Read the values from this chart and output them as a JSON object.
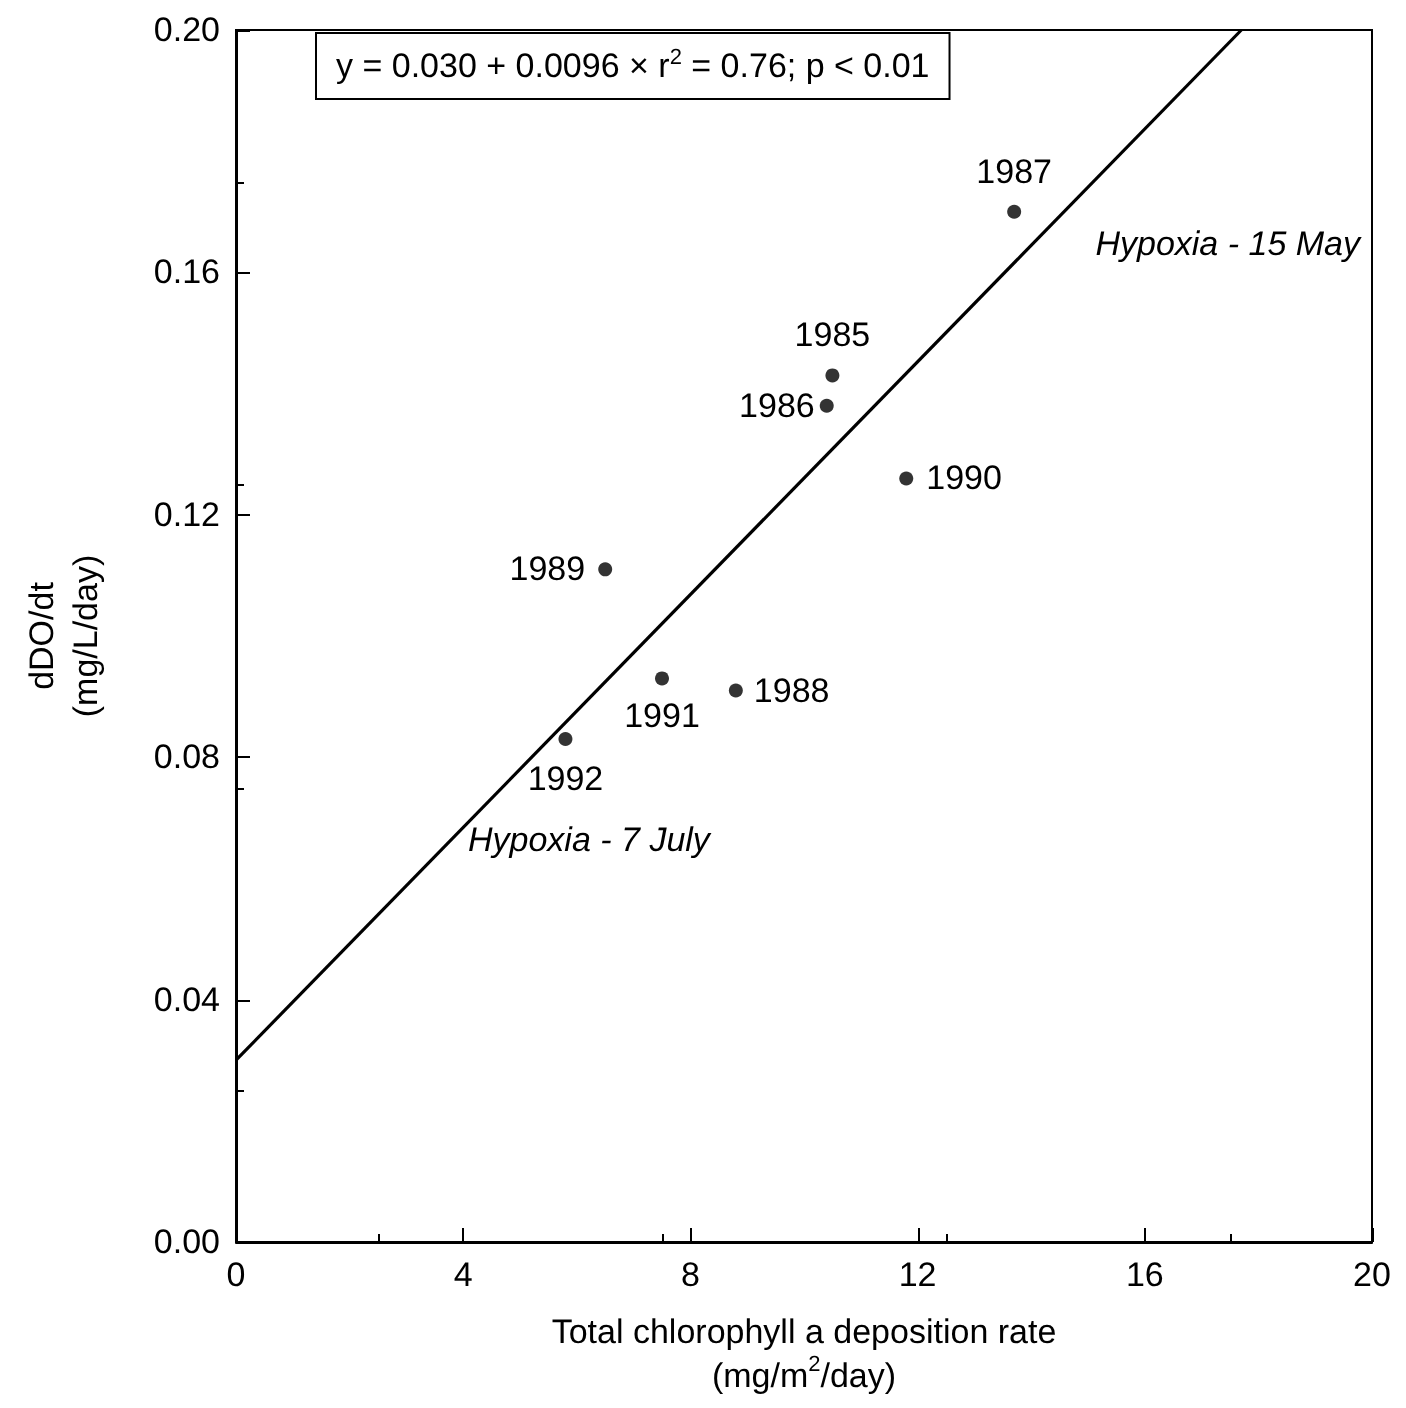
{
  "chart_data": {
    "type": "scatter",
    "xlabel": "Total chlorophyll a deposition rate\n(mg/m$^{2}$/day)",
    "ylabel": "dDO/dt\n(mg/L/day)",
    "xlim": [
      0,
      20
    ],
    "xticks": [
      0,
      4,
      8,
      12,
      16,
      20
    ],
    "ylim": [
      0,
      0.2
    ],
    "yticks": [
      {
        "value": 0,
        "label": "0.00"
      },
      0.04,
      0.08,
      0.12,
      0.16,
      {
        "value": 0.2,
        "label": "0.20"
      }
    ],
    "grid": false,
    "marker": "circle",
    "series": [
      {
        "color": "#000000",
        "x": [
          10.5,
          10.4,
          13.7,
          8.8,
          6.5,
          11.8,
          7.5,
          5.8
        ],
        "values": [
          0.143,
          0.138,
          0.17,
          0.091,
          0.111,
          0.126,
          0.093,
          0.083
        ]
      },
      {
        "type": "line",
        "color": "#000000",
        "marker": "none",
        "line_style": "solid",
        "x": [
          0,
          17.7
        ],
        "values": [
          0.03,
          0.2
        ]
      }
    ],
    "annotations": [
      "y = 0.030 + 0.0096 × r$^{2}$ = 0.76; p < 0.01",
      "Hypoxia - 15 May",
      "Hypoxia - 7 July",
      {
        "text": "1985",
        "x": 10.5,
        "y": 0.143
      },
      {
        "text": "1986",
        "x": 10.4,
        "y": 0.138
      },
      {
        "text": "1987",
        "x": 13.7,
        "y": 0.17
      },
      {
        "text": "1988",
        "x": 8.8,
        "y": 0.091
      },
      {
        "text": "1989",
        "x": 6.5,
        "y": 0.111
      },
      {
        "text": "1990",
        "x": 11.8,
        "y": 0.126
      },
      {
        "text": "1991",
        "x": 7.5,
        "y": 0.093
      },
      {
        "text": "1992",
        "x": 5.8,
        "y": 0.083
      }
    ]
  }
}
